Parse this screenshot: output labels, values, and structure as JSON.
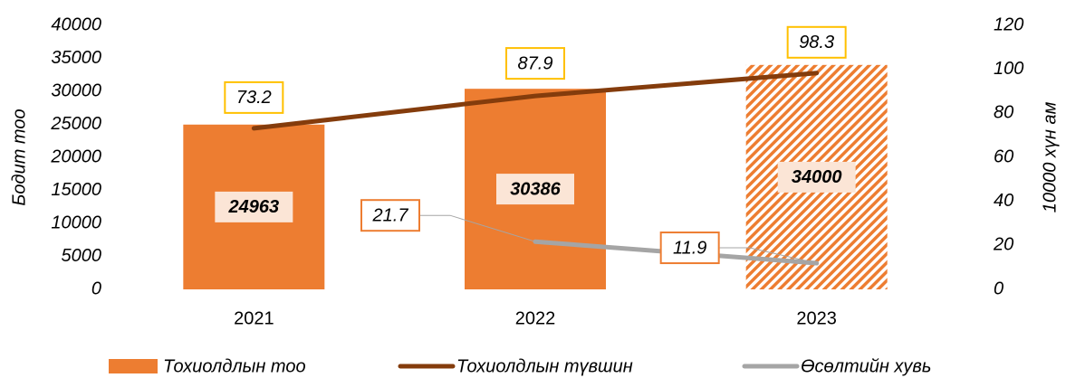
{
  "chart_data": {
    "type": "bar",
    "categories": [
      "2021",
      "2022",
      "2023"
    ],
    "ylabel": "Бодит тоо",
    "y2label": "10000 хүн ам",
    "ylim": [
      0,
      40000
    ],
    "yticks": [
      0,
      5000,
      10000,
      15000,
      20000,
      25000,
      30000,
      35000,
      40000
    ],
    "y2lim": [
      0,
      120
    ],
    "y2ticks": [
      0,
      20,
      40,
      60,
      80,
      100,
      120
    ],
    "grid": false,
    "legend": "bottom",
    "series": [
      {
        "name": "Тохиолдлын тоо",
        "type": "bar",
        "color": "#ed7d31",
        "values": [
          24963,
          30386,
          34000
        ],
        "pattern": [
          null,
          null,
          "hatch"
        ]
      },
      {
        "name": "Тохиолдлын түвшин",
        "type": "line",
        "axis": "y2",
        "color": "#843c0c",
        "values": [
          73.2,
          87.9,
          98.3
        ]
      },
      {
        "name": "Өсөлтийн хувь",
        "type": "line",
        "axis": "y2",
        "color": "#a5a5a5",
        "values": [
          null,
          21.7,
          11.9
        ]
      }
    ]
  }
}
